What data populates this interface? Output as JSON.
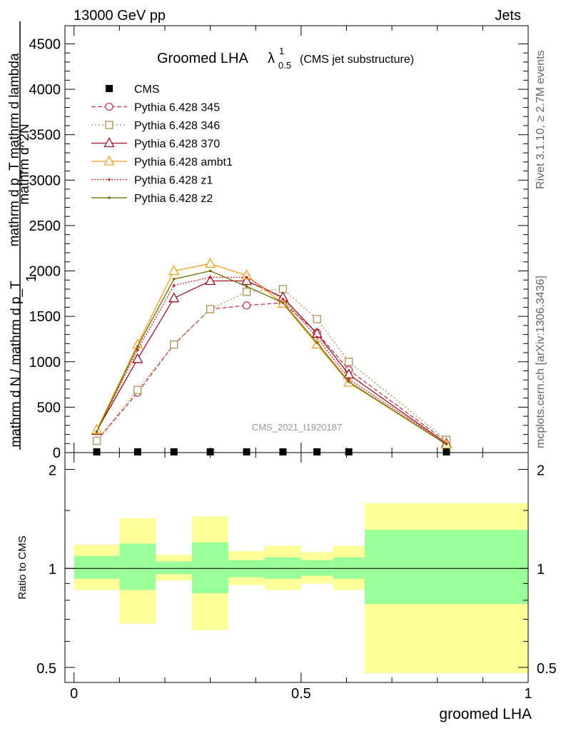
{
  "header": {
    "left": "13000 GeV pp",
    "right": "Jets"
  },
  "side_labels": {
    "rivet": "Rivet 3.1.10, ≥ 2.7M events",
    "mcplots": "mcplots.cern.ch [arXiv:1306.3436]"
  },
  "watermark": "CMS_2021_I1920187",
  "chart_data": [
    {
      "type": "line",
      "title_main": "Groomed LHA",
      "title_lambda": "λ",
      "title_sup": "1",
      "title_sub": "0.5",
      "title_note": "(CMS jet substructure)",
      "ylabel": {
        "numerator": "mathrm d^2N",
        "denominator_part": "mathrm d p_T mathrm d lambda",
        "prefix_one": "1",
        "prefix_denominator": "mathrm d N / mathrm d p_T"
      },
      "ylim": [
        0,
        4700
      ],
      "yticks": [
        0,
        500,
        1000,
        1500,
        2000,
        2500,
        3000,
        3500,
        4000,
        4500
      ],
      "ytick_labels": [
        "0",
        "500",
        "1000",
        "1500",
        "2000",
        "2500",
        "3000",
        "3500",
        "4000",
        "4500"
      ],
      "xlim": [
        -0.02,
        1.0
      ],
      "x": [
        0.05,
        0.14,
        0.22,
        0.3,
        0.38,
        0.46,
        0.535,
        0.605,
        0.82
      ],
      "series": [
        {
          "name": "CMS",
          "values": [
            0,
            0,
            0,
            0,
            0,
            0,
            0,
            0,
            0
          ],
          "color": "#000000",
          "marker": "square",
          "dash": "none"
        },
        {
          "name": "Pythia 6.428 345",
          "values": [
            130,
            660,
            1190,
            1580,
            1620,
            1650,
            1320,
            910,
            120
          ],
          "color": "#c0394e",
          "marker": "circle",
          "dash": "6,3"
        },
        {
          "name": "Pythia 6.428 346",
          "values": [
            130,
            690,
            1190,
            1580,
            1770,
            1800,
            1470,
            1000,
            140
          ],
          "color": "#b09050",
          "marker": "open-square",
          "dash": "2,3"
        },
        {
          "name": "Pythia 6.428 370",
          "values": [
            240,
            1030,
            1700,
            1890,
            1890,
            1710,
            1310,
            860,
            100
          ],
          "color": "#9a1020",
          "marker": "open-triangle",
          "dash": "none"
        },
        {
          "name": "Pythia 6.428 ambt1",
          "values": [
            250,
            1190,
            2000,
            2080,
            1950,
            1640,
            1190,
            770,
            90
          ],
          "color": "#f0a020",
          "marker": "open-triangle",
          "dash": "none"
        },
        {
          "name": "Pythia 6.428 z1",
          "values": [
            230,
            1130,
            1840,
            1930,
            1930,
            1690,
            1270,
            810,
            100
          ],
          "color": "#d01e1e",
          "marker": "dot",
          "dash": "2,2"
        },
        {
          "name": "Pythia 6.428 z2",
          "values": [
            230,
            1170,
            1910,
            2000,
            1830,
            1650,
            1210,
            780,
            90
          ],
          "color": "#6b6b00",
          "marker": "dot",
          "dash": "none"
        }
      ]
    },
    {
      "type": "area",
      "ylabel": "Ratio to CMS",
      "xlabel": "groomed LHA",
      "ylim": [
        0.45,
        2.25
      ],
      "yticks": [
        0.5,
        1,
        2
      ],
      "ytick_labels": [
        "0.5",
        "1",
        "2"
      ],
      "xlim": [
        -0.02,
        1.0
      ],
      "xticks": [
        0,
        0.5,
        1
      ],
      "xtick_labels": [
        "0",
        "0.5",
        "1"
      ],
      "bins": [
        {
          "x_low": 0.0,
          "x_high": 0.1,
          "stat_low": 0.93,
          "stat_high": 1.09,
          "tot_low": 0.86,
          "tot_high": 1.18
        },
        {
          "x_low": 0.1,
          "x_high": 0.18,
          "stat_low": 0.86,
          "stat_high": 1.19,
          "tot_low": 0.68,
          "tot_high": 1.42
        },
        {
          "x_low": 0.18,
          "x_high": 0.26,
          "stat_low": 0.96,
          "stat_high": 1.05,
          "tot_low": 0.92,
          "tot_high": 1.1
        },
        {
          "x_low": 0.26,
          "x_high": 0.34,
          "stat_low": 0.84,
          "stat_high": 1.2,
          "tot_low": 0.65,
          "tot_high": 1.44
        },
        {
          "x_low": 0.34,
          "x_high": 0.42,
          "stat_low": 0.94,
          "stat_high": 1.06,
          "tot_low": 0.89,
          "tot_high": 1.13
        },
        {
          "x_low": 0.42,
          "x_high": 0.5,
          "stat_low": 0.93,
          "stat_high": 1.08,
          "tot_low": 0.86,
          "tot_high": 1.17
        },
        {
          "x_low": 0.5,
          "x_high": 0.57,
          "stat_low": 0.95,
          "stat_high": 1.06,
          "tot_low": 0.9,
          "tot_high": 1.12
        },
        {
          "x_low": 0.57,
          "x_high": 0.64,
          "stat_low": 0.93,
          "stat_high": 1.08,
          "tot_low": 0.86,
          "tot_high": 1.17
        },
        {
          "x_low": 0.64,
          "x_high": 1.0,
          "stat_low": 0.78,
          "stat_high": 1.31,
          "tot_low": 0.48,
          "tot_high": 1.58
        }
      ]
    }
  ]
}
